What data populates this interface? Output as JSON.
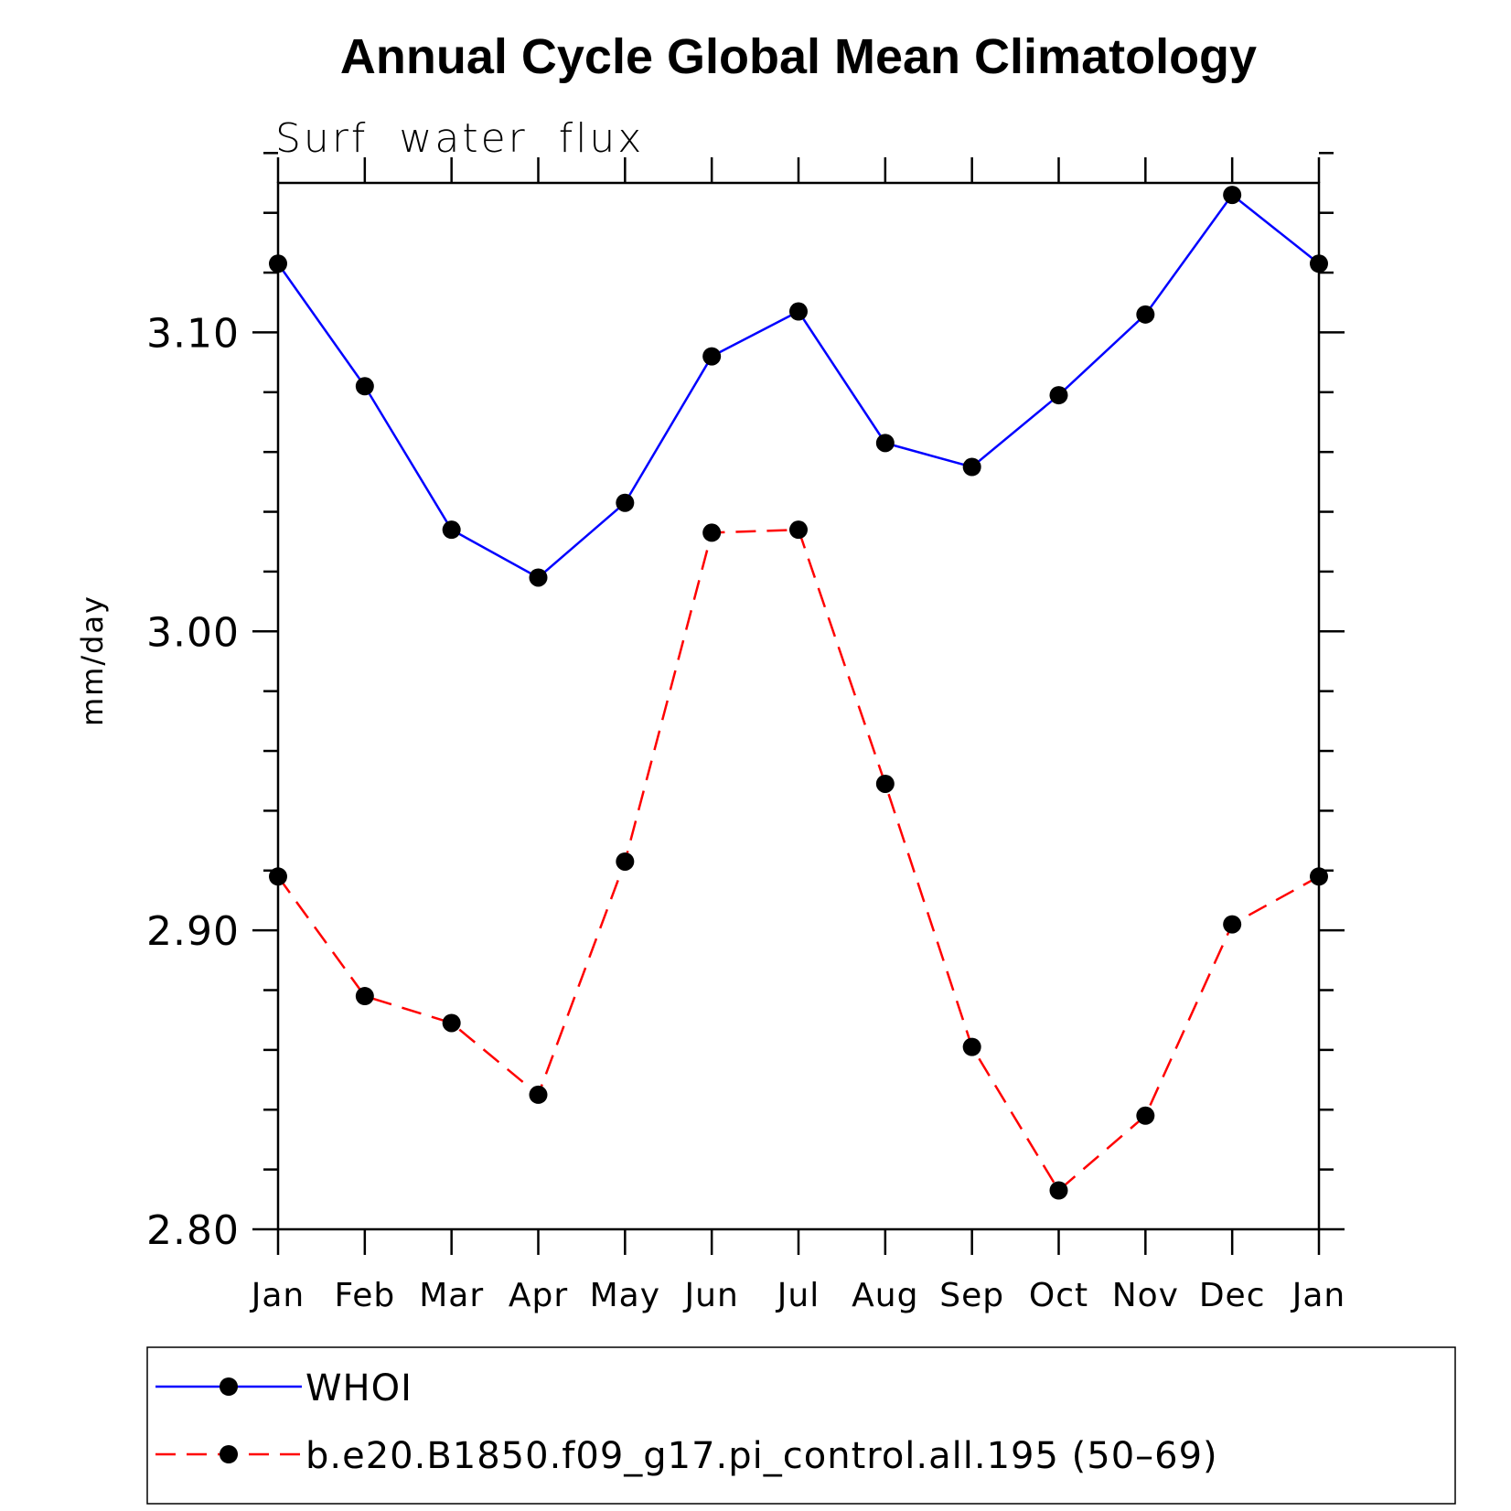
{
  "chart_data": {
    "type": "line",
    "title": "Annual Cycle Global Mean Climatology",
    "subtitle": "Surf  water  flux",
    "ylabel": "mm/day",
    "xlabel": "",
    "categories": [
      "Jan",
      "Feb",
      "Mar",
      "Apr",
      "May",
      "Jun",
      "Jul",
      "Aug",
      "Sep",
      "Oct",
      "Nov",
      "Dec",
      "Jan"
    ],
    "ylim": [
      2.8,
      3.15
    ],
    "yticks": [
      2.8,
      2.9,
      3.0,
      3.1
    ],
    "ytick_labels": [
      "2.80",
      "2.90",
      "3.00",
      "3.10"
    ],
    "yminor_step": 0.02,
    "grid": false,
    "legend_position": "bottom",
    "series": [
      {
        "name": "WHOI",
        "color": "#0000ff",
        "dash": "solid",
        "marker": "filled-circle",
        "values": [
          3.123,
          3.082,
          3.034,
          3.018,
          3.043,
          3.092,
          3.107,
          3.063,
          3.055,
          3.079,
          3.106,
          3.146,
          3.123
        ]
      },
      {
        "name": "b.e20.B1850.f09_g17.pi_control.all.195 (50–69)",
        "color": "#ff0000",
        "dash": "dashed",
        "marker": "filled-circle",
        "values": [
          2.918,
          2.878,
          2.869,
          2.845,
          2.923,
          3.033,
          3.034,
          2.949,
          2.861,
          2.813,
          2.838,
          2.902,
          2.918
        ]
      }
    ]
  }
}
